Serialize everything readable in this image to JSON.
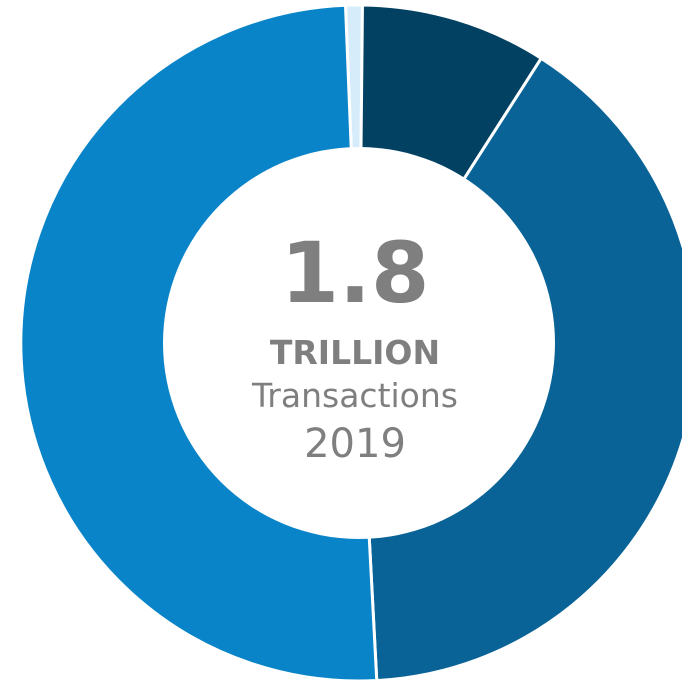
{
  "chart_data": {
    "type": "pie",
    "title": "",
    "slices": [
      {
        "value": 0.8,
        "color": "#d6ecfa"
      },
      {
        "value": 8.9,
        "color": "#034163"
      },
      {
        "value": 40.1,
        "color": "#096397"
      },
      {
        "value": 50.2,
        "color": "#0a84c8"
      }
    ],
    "center": {
      "value": "1.8",
      "unit": "TRILLION",
      "label": "Transactions",
      "year": "2019"
    }
  }
}
